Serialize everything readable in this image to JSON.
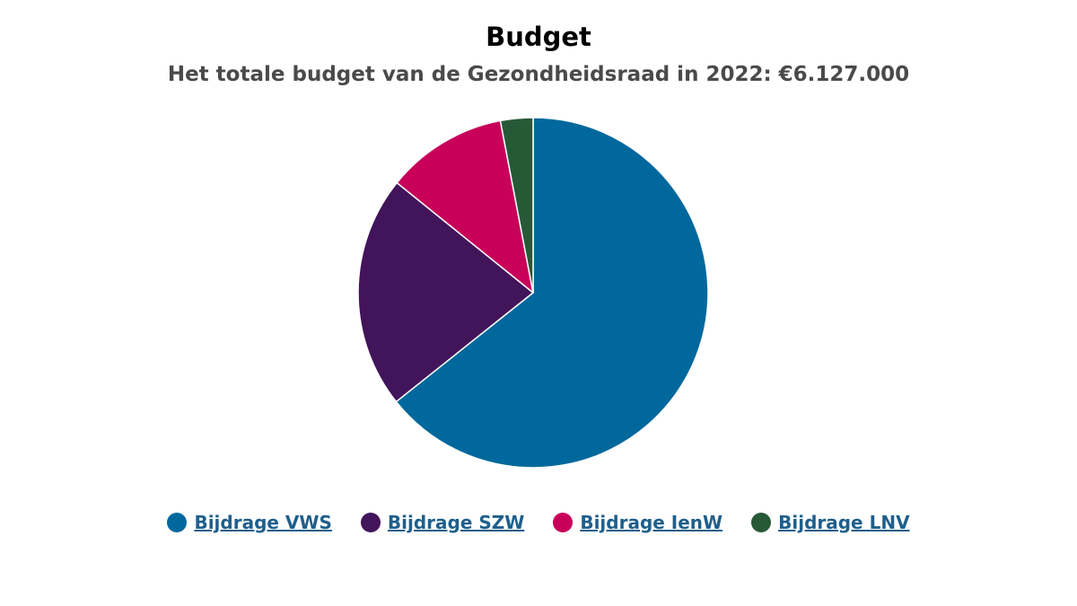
{
  "chart_data": {
    "type": "pie",
    "title": "Budget",
    "subtitle": "Het totale budget van de Gezondheidsraad in 2022: €6.127.000",
    "series": [
      {
        "name": "Bijdrage VWS",
        "value": 64.3,
        "color": "#00689c"
      },
      {
        "name": "Bijdrage SZW",
        "value": 21.5,
        "color": "#42145a"
      },
      {
        "name": "Bijdrage IenW",
        "value": 11.2,
        "color": "#c8005a"
      },
      {
        "name": "Bijdrage LNV",
        "value": 3.0,
        "color": "#275937"
      }
    ],
    "legend_position": "bottom",
    "legend_text_color": "#1f5f8b"
  }
}
